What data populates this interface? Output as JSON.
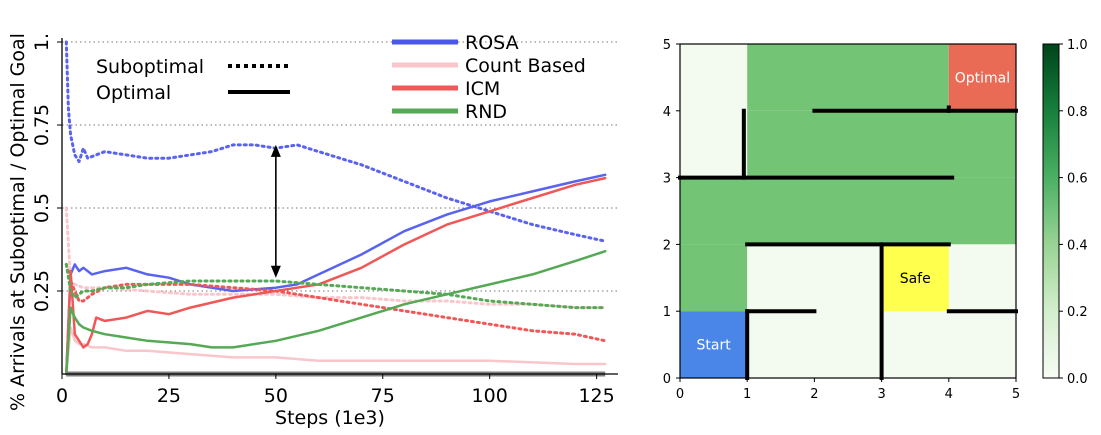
{
  "chart_data": [
    {
      "type": "line",
      "xlabel": "Steps (1e3)",
      "ylabel": "% Arrivals at Suboptimal / Optimal Goal",
      "xlim": [
        0,
        130
      ],
      "ylim": [
        0,
        1.0
      ],
      "x_ticks": [
        "0",
        "25",
        "50",
        "75",
        "100",
        "125"
      ],
      "y_ticks": [
        "1.",
        "0.75",
        "0.5",
        "0.25"
      ],
      "y_tick_values": [
        1.0,
        0.75,
        0.5,
        0.25
      ],
      "grid": "dotted horizontal at 0.25, 0.5, 0.75, 1.0",
      "style_legend": [
        {
          "label": "Suboptimal",
          "style": "dotted"
        },
        {
          "label": "Optimal",
          "style": "solid"
        }
      ],
      "series_legend": [
        {
          "label": "ROSA",
          "color": "#4b57e8"
        },
        {
          "label": "Count Based",
          "color": "#f9c6cc"
        },
        {
          "label": "ICM",
          "color": "#f05757"
        },
        {
          "label": "RND",
          "color": "#55a955"
        }
      ],
      "series": [
        {
          "name": "ROSA",
          "style": "dotted",
          "color": "#5a63ee",
          "x": [
            1,
            1.5,
            2,
            3,
            4,
            5,
            6,
            8,
            10,
            15,
            20,
            25,
            30,
            35,
            40,
            45,
            50,
            55,
            60,
            70,
            80,
            90,
            100,
            110,
            120,
            127
          ],
          "y": [
            1.0,
            0.8,
            0.72,
            0.66,
            0.64,
            0.68,
            0.65,
            0.66,
            0.67,
            0.66,
            0.65,
            0.65,
            0.66,
            0.67,
            0.69,
            0.69,
            0.68,
            0.69,
            0.67,
            0.63,
            0.58,
            0.53,
            0.49,
            0.45,
            0.42,
            0.4
          ]
        },
        {
          "name": "ROSA",
          "style": "solid",
          "color": "#5a63ee",
          "x": [
            1,
            2,
            3,
            4,
            5,
            7,
            10,
            15,
            20,
            25,
            30,
            40,
            50,
            55,
            60,
            70,
            80,
            90,
            100,
            110,
            120,
            127
          ],
          "y": [
            0.0,
            0.3,
            0.33,
            0.31,
            0.32,
            0.3,
            0.31,
            0.32,
            0.3,
            0.29,
            0.27,
            0.25,
            0.26,
            0.27,
            0.3,
            0.36,
            0.43,
            0.48,
            0.52,
            0.55,
            0.58,
            0.6
          ]
        },
        {
          "name": "Count Based",
          "style": "dotted",
          "color": "#f9c6cc",
          "x": [
            1,
            2,
            3,
            5,
            10,
            20,
            30,
            40,
            50,
            60,
            70,
            80,
            90,
            100,
            110,
            120,
            127
          ],
          "y": [
            0.5,
            0.28,
            0.27,
            0.26,
            0.26,
            0.25,
            0.24,
            0.24,
            0.24,
            0.23,
            0.23,
            0.22,
            0.22,
            0.21,
            0.21,
            0.2,
            0.2
          ]
        },
        {
          "name": "Count Based",
          "style": "solid",
          "color": "#f9c6cc",
          "x": [
            1,
            2,
            3,
            4,
            5,
            7,
            10,
            15,
            20,
            30,
            40,
            50,
            60,
            80,
            100,
            120,
            127
          ],
          "y": [
            0.0,
            0.14,
            0.1,
            0.09,
            0.09,
            0.08,
            0.08,
            0.07,
            0.07,
            0.06,
            0.05,
            0.05,
            0.04,
            0.04,
            0.04,
            0.03,
            0.03
          ]
        },
        {
          "name": "ICM",
          "style": "dotted",
          "color": "#f05757",
          "x": [
            1,
            2,
            3,
            4,
            5,
            7,
            10,
            15,
            20,
            30,
            40,
            50,
            60,
            70,
            80,
            90,
            100,
            110,
            120,
            127
          ],
          "y": [
            0.33,
            0.28,
            0.25,
            0.22,
            0.22,
            0.24,
            0.26,
            0.27,
            0.27,
            0.27,
            0.26,
            0.25,
            0.23,
            0.21,
            0.19,
            0.17,
            0.15,
            0.13,
            0.12,
            0.1
          ]
        },
        {
          "name": "ICM",
          "style": "solid",
          "color": "#f05757",
          "x": [
            1,
            2,
            3,
            4,
            5,
            6,
            7,
            8,
            10,
            15,
            20,
            25,
            30,
            40,
            50,
            55,
            60,
            70,
            80,
            90,
            100,
            110,
            120,
            127
          ],
          "y": [
            0.0,
            0.31,
            0.12,
            0.1,
            0.08,
            0.09,
            0.12,
            0.17,
            0.16,
            0.17,
            0.19,
            0.18,
            0.2,
            0.23,
            0.25,
            0.26,
            0.27,
            0.32,
            0.39,
            0.45,
            0.49,
            0.53,
            0.57,
            0.59
          ]
        },
        {
          "name": "RND",
          "style": "dotted",
          "color": "#55a955",
          "x": [
            1,
            2,
            3,
            4,
            5,
            7,
            10,
            15,
            20,
            30,
            40,
            50,
            60,
            70,
            80,
            90,
            100,
            110,
            120,
            127
          ],
          "y": [
            0.33,
            0.25,
            0.23,
            0.24,
            0.25,
            0.25,
            0.26,
            0.26,
            0.27,
            0.28,
            0.28,
            0.28,
            0.27,
            0.26,
            0.25,
            0.24,
            0.22,
            0.21,
            0.2,
            0.2
          ]
        },
        {
          "name": "RND",
          "style": "solid",
          "color": "#55a955",
          "x": [
            1,
            2,
            3,
            4,
            5,
            7,
            10,
            15,
            20,
            30,
            35,
            40,
            50,
            60,
            70,
            80,
            90,
            100,
            110,
            120,
            127
          ],
          "y": [
            0.0,
            0.2,
            0.17,
            0.15,
            0.14,
            0.13,
            0.12,
            0.11,
            0.1,
            0.09,
            0.08,
            0.08,
            0.1,
            0.13,
            0.17,
            0.21,
            0.24,
            0.27,
            0.3,
            0.34,
            0.37
          ]
        }
      ],
      "baseline": {
        "y": 0,
        "x": [
          1,
          127
        ],
        "color": "#7f7f7f"
      },
      "annotations": [
        {
          "type": "double-arrow",
          "x": 50,
          "y_from": 0.69,
          "y_to": 0.29
        }
      ]
    },
    {
      "type": "heatmap",
      "xlim": [
        0,
        5
      ],
      "ylim": [
        0,
        5
      ],
      "x_ticks": [
        "0",
        "1",
        "2",
        "3",
        "4",
        "5"
      ],
      "y_ticks": [
        "0",
        "1",
        "2",
        "3",
        "4",
        "5"
      ],
      "colorbar": {
        "ticks": [
          "0.0",
          "0.2",
          "0.4",
          "0.6",
          "0.8",
          "1.0"
        ],
        "range": [
          0,
          1.0
        ],
        "low_color": "#f7fcf5",
        "high_color": "#00441b"
      },
      "cells": [
        {
          "x0": 0,
          "x1": 1,
          "y0": 4,
          "y1": 5,
          "value": 0.02
        },
        {
          "x0": 1,
          "x1": 4,
          "y0": 4,
          "y1": 5,
          "value": 0.45
        },
        {
          "x0": 0,
          "x1": 1,
          "y0": 3,
          "y1": 4,
          "value": 0.02
        },
        {
          "x0": 1,
          "x1": 5,
          "y0": 3,
          "y1": 4,
          "value": 0.45
        },
        {
          "x0": 0,
          "x1": 5,
          "y0": 2,
          "y1": 3,
          "value": 0.45
        },
        {
          "x0": 0,
          "x1": 1,
          "y0": 1,
          "y1": 2,
          "value": 0.45
        },
        {
          "x0": 1,
          "x1": 5,
          "y0": 0,
          "y1": 2,
          "value": 0.02
        },
        {
          "x0": 4,
          "x1": 5,
          "y0": 1,
          "y1": 2,
          "value": 0.02
        }
      ],
      "goals": [
        {
          "label": "Start",
          "x0": 0,
          "x1": 1,
          "y0": 0,
          "y1": 1,
          "color": "#4a86e8",
          "text_color": "#ffffff"
        },
        {
          "label": "Safe",
          "x0": 3,
          "x1": 4,
          "y0": 1,
          "y1": 2,
          "color": "#ffff4d",
          "text_color": "#000000"
        },
        {
          "label": "Optimal",
          "x0": 4,
          "x1": 5,
          "y0": 4,
          "y1": 5,
          "color": "#ea6b55",
          "text_color": "#ffffff"
        }
      ],
      "walls": [
        {
          "from": [
            1,
            0
          ],
          "to": [
            1,
            1
          ]
        },
        {
          "from": [
            1,
            1
          ],
          "to": [
            2,
            1
          ]
        },
        {
          "from": [
            3,
            0
          ],
          "to": [
            3,
            2
          ]
        },
        {
          "from": [
            4,
            1
          ],
          "to": [
            5,
            1
          ]
        },
        {
          "from": [
            1,
            2
          ],
          "to": [
            4,
            2
          ]
        },
        {
          "from": [
            0,
            3
          ],
          "to": [
            4.05,
            3
          ]
        },
        {
          "from": [
            0.95,
            3
          ],
          "to": [
            0.95,
            4
          ]
        },
        {
          "from": [
            2,
            4
          ],
          "to": [
            5,
            4
          ]
        },
        {
          "from": [
            4,
            4
          ],
          "to": [
            4,
            4.05
          ]
        }
      ]
    }
  ]
}
